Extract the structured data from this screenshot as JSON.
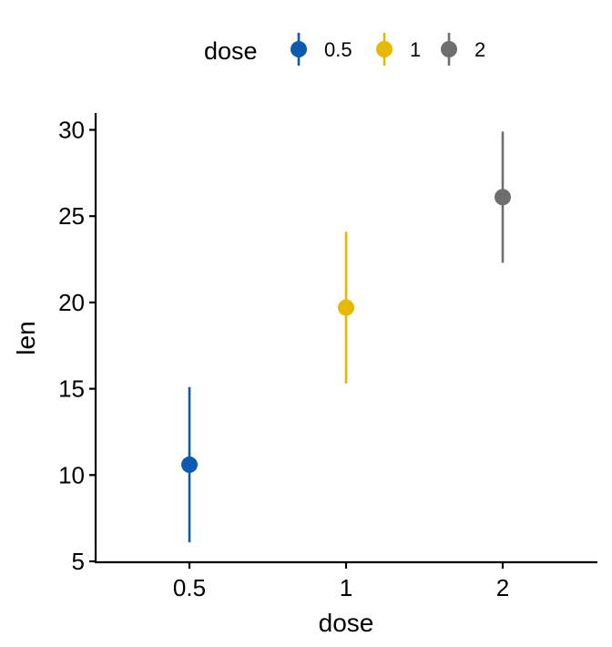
{
  "chart_data": {
    "type": "scatter",
    "xlabel": "dose",
    "ylabel": "len",
    "categories": [
      "0.5",
      "1",
      "2"
    ],
    "ylim": [
      5,
      31
    ],
    "yticks": [
      5,
      10,
      15,
      20,
      25,
      30
    ],
    "grid": false,
    "legend": {
      "title": "dose",
      "position": "top",
      "entries": [
        "0.5",
        "1",
        "2"
      ]
    },
    "series": [
      {
        "name": "0.5",
        "x": "0.5",
        "mean": 10.6,
        "lower": 6.1,
        "upper": 15.1,
        "color": "#0C5BB0"
      },
      {
        "name": "1",
        "x": "1",
        "mean": 19.7,
        "lower": 15.3,
        "upper": 24.1,
        "color": "#E7B800"
      },
      {
        "name": "2",
        "x": "2",
        "mean": 26.1,
        "lower": 22.3,
        "upper": 29.9,
        "color": "#6E6E6E"
      }
    ]
  }
}
